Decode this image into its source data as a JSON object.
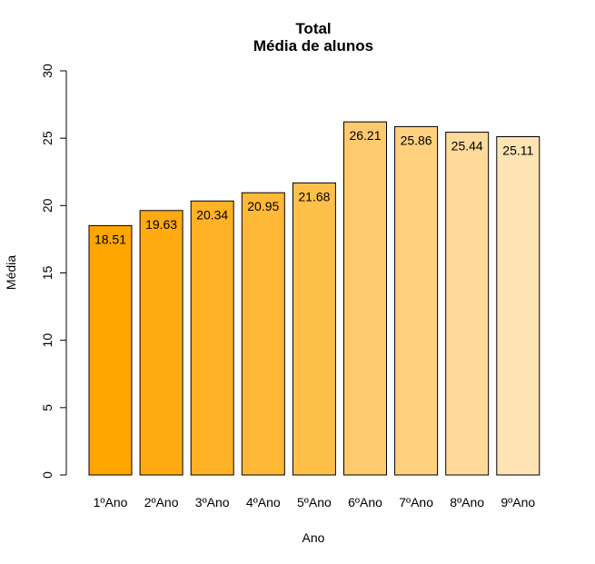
{
  "chart_data": {
    "type": "bar",
    "title": "Total",
    "subtitle": "Média de alunos",
    "xlabel": "Ano",
    "ylabel": "Média",
    "ylim": [
      0,
      30
    ],
    "yticks": [
      "0",
      "5",
      "10",
      "15",
      "20",
      "25",
      "30"
    ],
    "grid": false,
    "legend": "none",
    "categories": [
      "1ºAno",
      "2ºAno",
      "3ºAno",
      "4ºAno",
      "5ºAno",
      "6ºAno",
      "7ºAno",
      "8ºAno",
      "9ºAno"
    ],
    "values": [
      18.51,
      19.63,
      20.34,
      20.95,
      21.68,
      26.21,
      25.86,
      25.44,
      25.11
    ],
    "value_labels": [
      "18.51",
      "19.63",
      "20.34",
      "20.95",
      "21.68",
      "26.21",
      "25.86",
      "25.44",
      "25.11"
    ],
    "colors": [
      "#FFA500",
      "#FFAA12",
      "#FFB225",
      "#FFB937",
      "#FFC049",
      "#FFCA6D",
      "#FFD17F",
      "#FFDA9A",
      "#FFE4B5"
    ],
    "bar_border_color": "#000000"
  }
}
